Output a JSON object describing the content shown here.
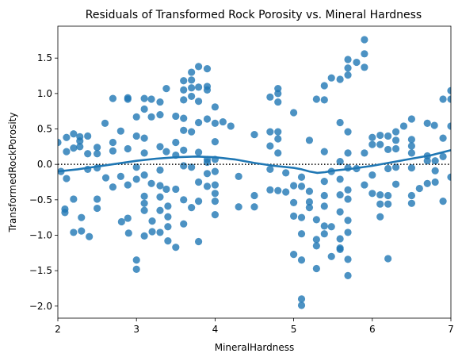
{
  "chart_data": {
    "type": "scatter",
    "title": "Residuals of Transformed Rock Porosity vs. Mineral Hardness",
    "xlabel": "MineralHardness",
    "ylabel": "TransformedRockPorosity",
    "xlim": [
      2,
      7
    ],
    "ylim": [
      -2.17,
      1.95
    ],
    "xticks": [
      2,
      3,
      4,
      5,
      6,
      7
    ],
    "xtick_labels": [
      "2",
      "3",
      "4",
      "5",
      "6",
      "7"
    ],
    "yticks": [
      -2.0,
      -1.5,
      -1.0,
      -0.5,
      0.0,
      0.5,
      1.0,
      1.5
    ],
    "ytick_labels": [
      "−2.0",
      "−1.5",
      "−1.0",
      "−0.5",
      "0.0",
      "0.5",
      "1.0",
      "1.5"
    ],
    "grid": false,
    "point_color": "#1f77b4",
    "reference_line": {
      "y": 0,
      "style": "dotted",
      "color": "#000000"
    },
    "points": [
      [
        2.0,
        0.31
      ],
      [
        2.04,
        -0.1
      ],
      [
        2.09,
        -0.63
      ],
      [
        2.09,
        -0.68
      ],
      [
        2.11,
        0.38
      ],
      [
        2.11,
        0.18
      ],
      [
        2.11,
        -0.2
      ],
      [
        2.2,
        0.43
      ],
      [
        2.2,
        0.23
      ],
      [
        2.2,
        -0.49
      ],
      [
        2.2,
        -0.96
      ],
      [
        2.28,
        0.39
      ],
      [
        2.28,
        0.33
      ],
      [
        2.28,
        0.25
      ],
      [
        2.3,
        -0.75
      ],
      [
        2.3,
        -0.94
      ],
      [
        2.38,
        0.4
      ],
      [
        2.38,
        0.15
      ],
      [
        2.38,
        -0.07
      ],
      [
        2.4,
        -1.02
      ],
      [
        2.5,
        0.24
      ],
      [
        2.5,
        0.15
      ],
      [
        2.5,
        -0.05
      ],
      [
        2.5,
        -0.49
      ],
      [
        2.5,
        -0.62
      ],
      [
        2.6,
        0.58
      ],
      [
        2.61,
        -0.19
      ],
      [
        2.7,
        0.93
      ],
      [
        2.7,
        0.31
      ],
      [
        2.7,
        0.19
      ],
      [
        2.7,
        -0.32
      ],
      [
        2.8,
        0.47
      ],
      [
        2.8,
        -0.17
      ],
      [
        2.81,
        -0.81
      ],
      [
        2.89,
        0.94
      ],
      [
        2.89,
        0.92
      ],
      [
        2.89,
        0.22
      ],
      [
        2.89,
        -0.29
      ],
      [
        2.89,
        -0.76
      ],
      [
        2.9,
        -0.97
      ],
      [
        3.0,
        0.67
      ],
      [
        3.0,
        0.4
      ],
      [
        3.0,
        -0.04
      ],
      [
        3.0,
        -0.21
      ],
      [
        3.0,
        -1.35
      ],
      [
        3.0,
        -1.48
      ],
      [
        3.1,
        0.93
      ],
      [
        3.1,
        0.78
      ],
      [
        3.1,
        0.37
      ],
      [
        3.1,
        0.16
      ],
      [
        3.1,
        -0.15
      ],
      [
        3.1,
        -0.45
      ],
      [
        3.1,
        -0.55
      ],
      [
        3.1,
        -0.65
      ],
      [
        3.1,
        -1.01
      ],
      [
        3.19,
        0.92
      ],
      [
        3.19,
        0.67
      ],
      [
        3.19,
        -0.27
      ],
      [
        3.2,
        -0.95
      ],
      [
        3.2,
        -0.8
      ],
      [
        3.3,
        0.88
      ],
      [
        3.3,
        0.7
      ],
      [
        3.3,
        0.25
      ],
      [
        3.3,
        -0.08
      ],
      [
        3.3,
        -0.3
      ],
      [
        3.3,
        -0.46
      ],
      [
        3.3,
        -0.65
      ],
      [
        3.3,
        -0.96
      ],
      [
        3.38,
        1.07
      ],
      [
        3.38,
        0.18
      ],
      [
        3.38,
        -0.35
      ],
      [
        3.4,
        -0.59
      ],
      [
        3.4,
        -0.74
      ],
      [
        3.4,
        -0.88
      ],
      [
        3.4,
        -1.08
      ],
      [
        3.5,
        0.68
      ],
      [
        3.5,
        0.31
      ],
      [
        3.5,
        0.13
      ],
      [
        3.5,
        -0.35
      ],
      [
        3.5,
        -1.17
      ],
      [
        3.6,
        1.18
      ],
      [
        3.6,
        1.05
      ],
      [
        3.6,
        0.91
      ],
      [
        3.6,
        0.65
      ],
      [
        3.6,
        0.48
      ],
      [
        3.6,
        0.2
      ],
      [
        3.6,
        -0.02
      ],
      [
        3.6,
        -0.5
      ],
      [
        3.6,
        -0.84
      ],
      [
        3.7,
        1.3
      ],
      [
        3.7,
        1.19
      ],
      [
        3.7,
        1.08
      ],
      [
        3.7,
        0.96
      ],
      [
        3.7,
        0.46
      ],
      [
        3.7,
        -0.04
      ],
      [
        3.7,
        -0.61
      ],
      [
        3.79,
        1.38
      ],
      [
        3.79,
        1.09
      ],
      [
        3.79,
        0.89
      ],
      [
        3.79,
        0.59
      ],
      [
        3.79,
        0.17
      ],
      [
        3.79,
        -0.25
      ],
      [
        3.79,
        -0.52
      ],
      [
        3.79,
        -1.09
      ],
      [
        3.9,
        1.35
      ],
      [
        3.9,
        1.1
      ],
      [
        3.9,
        1.05
      ],
      [
        3.9,
        0.64
      ],
      [
        3.9,
        0.07
      ],
      [
        3.9,
        0.03
      ],
      [
        3.9,
        -0.13
      ],
      [
        3.9,
        -0.31
      ],
      [
        4.0,
        0.81
      ],
      [
        4.0,
        0.58
      ],
      [
        4.0,
        0.32
      ],
      [
        4.0,
        0.07
      ],
      [
        4.0,
        -0.1
      ],
      [
        4.0,
        -0.29
      ],
      [
        4.0,
        -0.41
      ],
      [
        4.0,
        -0.52
      ],
      [
        4.0,
        -0.71
      ],
      [
        4.1,
        0.6
      ],
      [
        4.2,
        0.54
      ],
      [
        4.3,
        -0.17
      ],
      [
        4.3,
        -0.6
      ],
      [
        4.5,
        0.42
      ],
      [
        4.5,
        -0.44
      ],
      [
        4.5,
        -0.6
      ],
      [
        4.7,
        0.95
      ],
      [
        4.7,
        0.46
      ],
      [
        4.7,
        0.26
      ],
      [
        4.7,
        -0.07
      ],
      [
        4.7,
        -0.36
      ],
      [
        4.8,
        1.07
      ],
      [
        4.8,
        1.0
      ],
      [
        4.8,
        0.88
      ],
      [
        4.8,
        0.46
      ],
      [
        4.8,
        0.36
      ],
      [
        4.8,
        0.16
      ],
      [
        4.8,
        -0.37
      ],
      [
        4.9,
        -0.12
      ],
      [
        4.9,
        -0.39
      ],
      [
        5.0,
        0.73
      ],
      [
        5.0,
        -0.3
      ],
      [
        5.0,
        -0.54
      ],
      [
        5.0,
        -0.73
      ],
      [
        5.0,
        -1.27
      ],
      [
        5.1,
        -0.18
      ],
      [
        5.1,
        -0.31
      ],
      [
        5.1,
        -0.75
      ],
      [
        5.1,
        -0.98
      ],
      [
        5.1,
        -1.35
      ],
      [
        5.1,
        -1.9
      ],
      [
        5.1,
        -1.99
      ],
      [
        5.2,
        0.34
      ],
      [
        5.2,
        -0.38
      ],
      [
        5.2,
        -0.53
      ],
      [
        5.2,
        -0.61
      ],
      [
        5.29,
        0.92
      ],
      [
        5.29,
        -0.78
      ],
      [
        5.29,
        -1.06
      ],
      [
        5.29,
        -1.15
      ],
      [
        5.29,
        -1.47
      ],
      [
        5.39,
        1.11
      ],
      [
        5.39,
        0.91
      ],
      [
        5.39,
        0.18
      ],
      [
        5.39,
        -0.24
      ],
      [
        5.39,
        -0.44
      ],
      [
        5.39,
        -0.59
      ],
      [
        5.39,
        -0.87
      ],
      [
        5.39,
        -0.98
      ],
      [
        5.48,
        1.22
      ],
      [
        5.48,
        -0.1
      ],
      [
        5.48,
        -0.88
      ],
      [
        5.48,
        -1.3
      ],
      [
        5.59,
        1.2
      ],
      [
        5.59,
        0.59
      ],
      [
        5.59,
        0.04
      ],
      [
        5.59,
        -0.21
      ],
      [
        5.59,
        -0.43
      ],
      [
        5.59,
        -0.67
      ],
      [
        5.59,
        -1.05
      ],
      [
        5.59,
        -1.18
      ],
      [
        5.59,
        -1.2
      ],
      [
        5.69,
        1.48
      ],
      [
        5.69,
        1.36
      ],
      [
        5.69,
        1.26
      ],
      [
        5.69,
        0.46
      ],
      [
        5.69,
        0.16
      ],
      [
        5.69,
        -0.05
      ],
      [
        5.69,
        -0.36
      ],
      [
        5.69,
        -0.49
      ],
      [
        5.69,
        -0.79
      ],
      [
        5.69,
        -0.96
      ],
      [
        5.69,
        -1.34
      ],
      [
        5.69,
        -1.57
      ],
      [
        5.8,
        1.44
      ],
      [
        5.8,
        -0.06
      ],
      [
        5.9,
        1.76
      ],
      [
        5.9,
        1.56
      ],
      [
        5.9,
        1.37
      ],
      [
        5.9,
        0.16
      ],
      [
        5.9,
        -0.29
      ],
      [
        6.0,
        0.38
      ],
      [
        6.0,
        0.28
      ],
      [
        6.0,
        -0.15
      ],
      [
        6.0,
        -0.41
      ],
      [
        6.1,
        0.41
      ],
      [
        6.1,
        0.28
      ],
      [
        6.1,
        -0.43
      ],
      [
        6.1,
        -0.56
      ],
      [
        6.1,
        -0.74
      ],
      [
        6.2,
        0.4
      ],
      [
        6.2,
        0.21
      ],
      [
        6.2,
        -0.06
      ],
      [
        6.2,
        -0.44
      ],
      [
        6.2,
        -0.56
      ],
      [
        6.2,
        -1.33
      ],
      [
        6.3,
        0.46
      ],
      [
        6.3,
        0.34
      ],
      [
        6.3,
        0.22
      ],
      [
        6.3,
        -0.04
      ],
      [
        6.3,
        -0.28
      ],
      [
        6.4,
        0.54
      ],
      [
        6.5,
        0.64
      ],
      [
        6.5,
        0.35
      ],
      [
        6.5,
        0.26
      ],
      [
        6.5,
        0.16
      ],
      [
        6.5,
        -0.05
      ],
      [
        6.5,
        -0.44
      ],
      [
        6.5,
        -0.55
      ],
      [
        6.6,
        -0.34
      ],
      [
        6.7,
        0.58
      ],
      [
        6.7,
        0.12
      ],
      [
        6.7,
        0.05
      ],
      [
        6.7,
        -0.27
      ],
      [
        6.79,
        0.55
      ],
      [
        6.8,
        0.05
      ],
      [
        6.8,
        -0.09
      ],
      [
        6.8,
        -0.25
      ],
      [
        6.9,
        0.37
      ],
      [
        6.9,
        0.11
      ],
      [
        6.9,
        -0.52
      ],
      [
        6.9,
        0.92
      ],
      [
        7.0,
        1.04
      ],
      [
        7.0,
        0.92
      ],
      [
        7.0,
        0.54
      ],
      [
        7.0,
        -0.18
      ]
    ],
    "lowess": {
      "color": "#1f77b4",
      "points": [
        [
          2.0,
          -0.1
        ],
        [
          2.25,
          -0.07
        ],
        [
          2.5,
          -0.03
        ],
        [
          2.75,
          0.01
        ],
        [
          3.0,
          0.05
        ],
        [
          3.25,
          0.08
        ],
        [
          3.5,
          0.1
        ],
        [
          3.75,
          0.11
        ],
        [
          4.0,
          0.1
        ],
        [
          4.25,
          0.07
        ],
        [
          4.5,
          0.02
        ],
        [
          4.75,
          -0.02
        ],
        [
          5.0,
          -0.05
        ],
        [
          5.1,
          -0.07
        ],
        [
          5.2,
          -0.1
        ],
        [
          5.3,
          -0.12
        ],
        [
          5.4,
          -0.11
        ],
        [
          5.5,
          -0.09
        ],
        [
          5.75,
          -0.06
        ],
        [
          6.0,
          -0.02
        ],
        [
          6.25,
          0.03
        ],
        [
          6.5,
          0.08
        ],
        [
          6.75,
          0.13
        ],
        [
          7.0,
          0.2
        ]
      ]
    }
  }
}
